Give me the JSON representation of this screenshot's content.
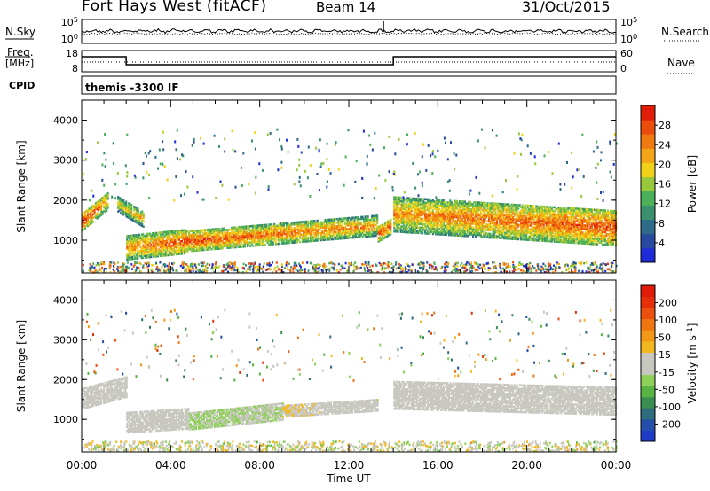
{
  "header": {
    "title": "Fort Hays West (fitACF)",
    "beam": "Beam 14",
    "date": "31/Oct/2015"
  },
  "top_panels": {
    "nsky_label": "N.Sky",
    "nsearch_label": "N.Search",
    "nsky_ticks": [
      "10^5",
      "10^0"
    ],
    "nsky_right_ticks": [
      "10^5",
      "10^0"
    ],
    "freq_label": "Freq.",
    "freq_unit": "[MHz]",
    "freq_ticks": [
      "18",
      "8"
    ],
    "nave_label": "Nave",
    "nave_ticks": [
      "60",
      "0"
    ],
    "cpid_label": "CPID",
    "cpid_value": "themis -3300 IF"
  },
  "colors": {
    "power": [
      "#1f2ad8",
      "#27499e",
      "#2f6a8a",
      "#3a8f6e",
      "#4ab05a",
      "#98c83c",
      "#f0d21a",
      "#f3a516",
      "#f17a10",
      "#ec4c0c",
      "#e01e0a"
    ],
    "velocity": [
      "#1f3cc8",
      "#234fa8",
      "#2d6b7d",
      "#3a8e52",
      "#57b443",
      "#8fd05a",
      "#c8c8c0",
      "#c8c8c0",
      "#f3b720",
      "#f39716",
      "#f07612",
      "#ec500e",
      "#e6300c",
      "#e01a0a"
    ]
  },
  "chart_data": [
    {
      "type": "heatmap",
      "name": "power",
      "ylabel": "Slant Range [km]",
      "ylim": [
        180,
        4500
      ],
      "xlim": [
        0,
        24
      ],
      "yticks": [
        "1000",
        "2000",
        "3000",
        "4000"
      ],
      "colorbar": {
        "label": "Power [dB]",
        "ticks": [
          "28",
          "24",
          "20",
          "16",
          "12",
          "8",
          "4"
        ],
        "range": [
          0,
          32
        ]
      },
      "bands": [
        {
          "t0": 0.0,
          "t1": 1.2,
          "r_start": 1450,
          "r_end": 2000,
          "w": 450,
          "v0": 24,
          "v1": 18
        },
        {
          "t0": 1.6,
          "t1": 2.8,
          "r_start": 1900,
          "r_end": 1500,
          "w": 400,
          "v0": 14,
          "v1": 18
        },
        {
          "t0": 2.0,
          "t1": 4.6,
          "r_start": 800,
          "r_end": 950,
          "w": 600,
          "v0": 18,
          "v1": 22
        },
        {
          "t0": 4.6,
          "t1": 13.3,
          "r_start": 950,
          "r_end": 1350,
          "w": 500,
          "v0": 22,
          "v1": 18
        },
        {
          "t0": 13.3,
          "t1": 13.9,
          "r_start": 1150,
          "r_end": 1350,
          "w": 400,
          "v0": 22,
          "v1": 20
        },
        {
          "t0": 14.0,
          "t1": 24.0,
          "r_start": 1650,
          "r_end": 1300,
          "w": 900,
          "v0": 18,
          "v1": 22
        }
      ]
    },
    {
      "type": "heatmap",
      "name": "velocity",
      "xlabel": "Time UT",
      "ylabel": "Slant Range [km]",
      "ylim": [
        180,
        4500
      ],
      "xlim": [
        0,
        24
      ],
      "yticks": [
        "1000",
        "2000",
        "3000",
        "4000"
      ],
      "xticks": [
        "00:00",
        "04:00",
        "08:00",
        "12:00",
        "16:00",
        "20:00",
        "00:00"
      ],
      "colorbar": {
        "label": "Velocity [m s^-1]",
        "ticks": [
          "200",
          "100",
          "50",
          "15",
          "-15",
          "-50",
          "-100",
          "-200"
        ],
        "range": [
          -250,
          250
        ]
      },
      "bands": [
        {
          "t0": 0.0,
          "t1": 2.0,
          "r_start": 1500,
          "r_end": 1800,
          "w": 500,
          "v0": 0,
          "v1": 0
        },
        {
          "t0": 2.0,
          "t1": 4.8,
          "r_start": 900,
          "r_end": 1000,
          "w": 500,
          "v0": 0,
          "v1": 0
        },
        {
          "t0": 4.8,
          "t1": 9.0,
          "r_start": 950,
          "r_end": 1200,
          "w": 450,
          "v0": -40,
          "v1": -30
        },
        {
          "t0": 9.0,
          "t1": 13.3,
          "r_start": 1200,
          "r_end": 1350,
          "w": 300,
          "v0": 40,
          "v1": -20
        },
        {
          "t0": 14.0,
          "t1": 24.0,
          "r_start": 1600,
          "r_end": 1450,
          "w": 700,
          "v0": 0,
          "v1": 0
        }
      ]
    }
  ]
}
